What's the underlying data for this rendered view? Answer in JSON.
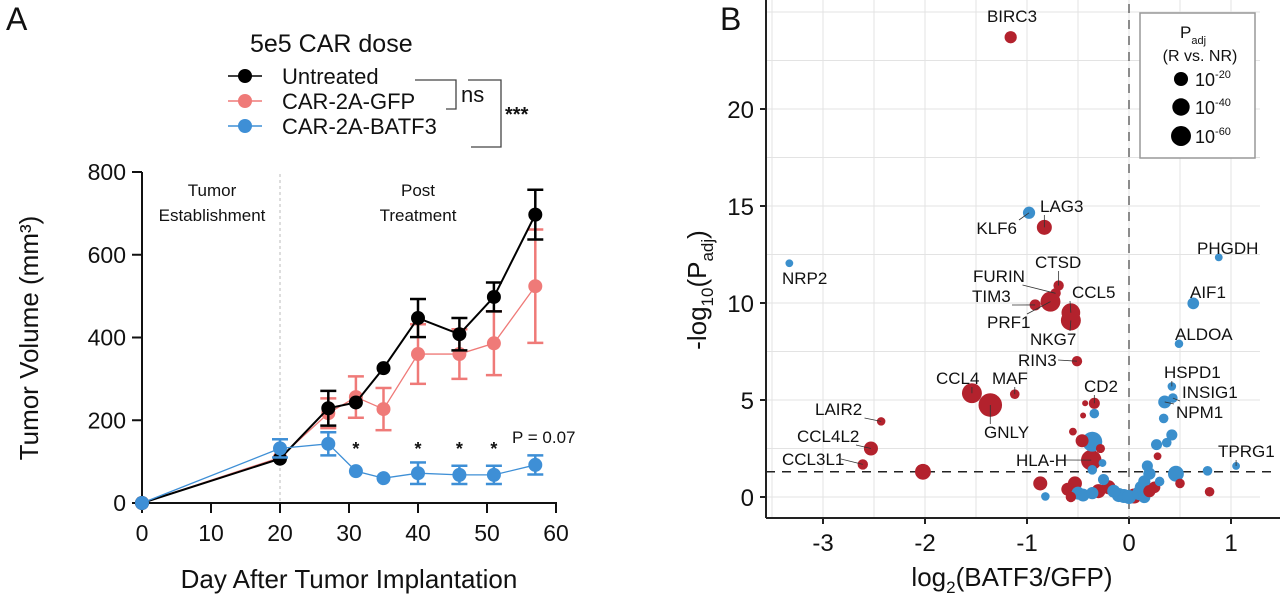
{
  "chart_data": [
    {
      "panel_label": "A",
      "type": "line",
      "title": "5e5 CAR dose",
      "xlabel": "Day After Tumor Implantation",
      "ylabel": "Tumor Volume  (mm³)",
      "xlim": [
        0,
        60
      ],
      "ylim": [
        0,
        800
      ],
      "xticks": [
        0,
        10,
        20,
        30,
        40,
        50,
        60
      ],
      "yticks": [
        0,
        200,
        400,
        600,
        800
      ],
      "grid": false,
      "legend_position": "top",
      "phase_divider_day": 20,
      "phase_labels": [
        [
          "Tumor",
          "Establishment"
        ],
        [
          "Post",
          "Treatment"
        ]
      ],
      "series": [
        {
          "name": "CAR-2A-GFP",
          "color": "#ef7a78",
          "x": [
            0,
            20,
            27,
            31,
            35,
            40,
            46,
            51,
            57
          ],
          "y": [
            0,
            110,
            217,
            256,
            227,
            360,
            360,
            386,
            524
          ],
          "err": [
            0,
            0,
            36,
            50,
            51,
            72,
            60,
            77,
            137
          ]
        },
        {
          "name": "Untreated",
          "color": "#000000",
          "x": [
            0,
            20,
            27,
            31,
            35,
            40,
            46,
            51,
            57
          ],
          "y": [
            0,
            107,
            229,
            243,
            326,
            447,
            408,
            498,
            697
          ],
          "err": [
            0,
            0,
            42,
            0,
            0,
            46,
            39,
            35,
            60
          ]
        },
        {
          "name": "CAR-2A-BATF3",
          "color": "#3e8fd6",
          "x": [
            0,
            20,
            27,
            31,
            35,
            40,
            46,
            51,
            57
          ],
          "y": [
            0,
            132,
            143,
            77,
            60,
            72,
            68,
            68,
            92
          ],
          "err": [
            0,
            22,
            28,
            0,
            0,
            26,
            22,
            22,
            23
          ]
        }
      ],
      "legend_order": [
        "Untreated",
        "CAR-2A-GFP",
        "CAR-2A-BATF3"
      ],
      "significance_days": [
        31,
        40,
        46,
        51
      ],
      "significance_mark": "*",
      "p_annotation": "P = 0.07",
      "comparisons": [
        {
          "label": "ns",
          "between": [
            "Untreated",
            "CAR-2A-GFP"
          ]
        },
        {
          "label": "***",
          "between": [
            "Untreated",
            "CAR-2A-BATF3"
          ]
        }
      ]
    },
    {
      "panel_label": "B",
      "type": "scatter",
      "xlabel": "log2(BATF3/GFP)",
      "ylabel": "-log10(Padj)",
      "xlim": [
        -3.6,
        1.3
      ],
      "ylim": [
        -0.8,
        25
      ],
      "xticks": [
        -3,
        -2,
        -1,
        0,
        1
      ],
      "yticks": [
        0,
        5,
        10,
        15,
        20
      ],
      "grid": true,
      "threshold_y": 1.3,
      "threshold_x": 0,
      "colors": {
        "red": "#b3222d",
        "blue": "#3b8fcc"
      },
      "size_legend": {
        "title": "P",
        "title_sub": "adj",
        "subtitle": "(R vs. NR)",
        "entries": [
          {
            "base": "10",
            "exp": "-20",
            "p_exp": 20
          },
          {
            "base": "10",
            "exp": "-40",
            "p_exp": 40
          },
          {
            "base": "10",
            "exp": "-60",
            "p_exp": 60
          }
        ],
        "position": "top-right"
      },
      "points": [
        {
          "x": -1.16,
          "y": 23.7,
          "c": "red",
          "p": 12,
          "label": "BIRC3"
        },
        {
          "x": -0.98,
          "y": 14.65,
          "c": "blue",
          "p": 12,
          "label": "KLF6"
        },
        {
          "x": -0.83,
          "y": 13.9,
          "c": "red",
          "p": 25,
          "label": "LAG3"
        },
        {
          "x": -3.33,
          "y": 12.05,
          "c": "blue",
          "p": 1,
          "label": "NRP2"
        },
        {
          "x": 0.88,
          "y": 12.35,
          "c": "blue",
          "p": 1,
          "label": "PHGDH"
        },
        {
          "x": -0.69,
          "y": 10.9,
          "c": "red",
          "p": 6,
          "label": "CTSD"
        },
        {
          "x": -0.72,
          "y": 10.5,
          "c": "red",
          "p": 6,
          "label": "FURIN"
        },
        {
          "x": -0.92,
          "y": 9.9,
          "c": "red",
          "p": 8,
          "label": "TIM3"
        },
        {
          "x": -0.77,
          "y": 10.07,
          "c": "red",
          "p": 60,
          "label": "PRF1"
        },
        {
          "x": -0.57,
          "y": 9.5,
          "c": "red",
          "p": 50,
          "label": "CCL5"
        },
        {
          "x": -0.57,
          "y": 9.1,
          "c": "red",
          "p": 60,
          "label": "NKG7"
        },
        {
          "x": 0.63,
          "y": 9.98,
          "c": "blue",
          "p": 10,
          "label": "AIF1"
        },
        {
          "x": 0.49,
          "y": 7.9,
          "c": "blue",
          "p": 2,
          "label": "ALDOA"
        },
        {
          "x": -0.51,
          "y": 7.0,
          "c": "red",
          "p": 6,
          "label": "RIN3"
        },
        {
          "x": -1.54,
          "y": 5.35,
          "c": "red",
          "p": 60,
          "label": "CCL4"
        },
        {
          "x": -1.36,
          "y": 4.74,
          "c": "red",
          "p": 95,
          "label": "GNLY"
        },
        {
          "x": -1.12,
          "y": 5.3,
          "c": "red",
          "p": 4,
          "label": "MAF"
        },
        {
          "x": -0.34,
          "y": 4.83,
          "c": "red",
          "p": 8,
          "label": "CD2"
        },
        {
          "x": 0.42,
          "y": 5.7,
          "c": "blue",
          "p": 2,
          "label": "HSPD1"
        },
        {
          "x": 0.43,
          "y": 5.1,
          "c": "blue",
          "p": 4,
          "label": "INSIG1"
        },
        {
          "x": 0.35,
          "y": 4.9,
          "c": "blue",
          "p": 15,
          "label": "NPM1"
        },
        {
          "x": -2.43,
          "y": 3.9,
          "c": "red",
          "p": 2,
          "label": "LAIR2"
        },
        {
          "x": -2.53,
          "y": 2.5,
          "c": "red",
          "p": 20,
          "label": "CCL4L2"
        },
        {
          "x": -2.61,
          "y": 1.68,
          "c": "red",
          "p": 6,
          "label": "CCL3L1"
        },
        {
          "x": -0.37,
          "y": 1.9,
          "c": "red",
          "p": 65,
          "label": "HLA-H"
        },
        {
          "x": 1.05,
          "y": 1.6,
          "c": "blue",
          "p": 1,
          "label": "TPRG1"
        },
        {
          "x": -0.43,
          "y": 4.83,
          "c": "red",
          "p": 0
        },
        {
          "x": -0.34,
          "y": 4.3,
          "c": "blue",
          "p": 4
        },
        {
          "x": -0.45,
          "y": 4.2,
          "c": "red",
          "p": 0
        },
        {
          "x": -2.02,
          "y": 1.3,
          "c": "red",
          "p": 30
        },
        {
          "x": -0.55,
          "y": 3.37,
          "c": "red",
          "p": 1
        },
        {
          "x": -0.46,
          "y": 2.9,
          "c": "red",
          "p": 15
        },
        {
          "x": -0.36,
          "y": 2.85,
          "c": "blue",
          "p": 60
        },
        {
          "x": -0.28,
          "y": 2.5,
          "c": "red",
          "p": 3
        },
        {
          "x": -0.26,
          "y": 1.75,
          "c": "blue",
          "p": 1
        },
        {
          "x": -0.36,
          "y": 1.4,
          "c": "blue",
          "p": 4
        },
        {
          "x": -0.87,
          "y": 0.7,
          "c": "red",
          "p": 20
        },
        {
          "x": -0.82,
          "y": 0.03,
          "c": "blue",
          "p": 2
        },
        {
          "x": -0.53,
          "y": 0.7,
          "c": "red",
          "p": 20
        },
        {
          "x": -0.57,
          "y": 0.0,
          "c": "red",
          "p": 6
        },
        {
          "x": -0.6,
          "y": 0.4,
          "c": "red",
          "p": 15
        },
        {
          "x": -0.45,
          "y": 0.1,
          "c": "blue",
          "p": 15
        },
        {
          "x": -0.36,
          "y": 0.2,
          "c": "blue",
          "p": 12
        },
        {
          "x": -0.5,
          "y": 0.2,
          "c": "blue",
          "p": 15
        },
        {
          "x": -0.3,
          "y": 0.3,
          "c": "red",
          "p": 20
        },
        {
          "x": -0.25,
          "y": 0.9,
          "c": "blue",
          "p": 8
        },
        {
          "x": -0.2,
          "y": 0.5,
          "c": "red",
          "p": 20
        },
        {
          "x": -0.15,
          "y": 0.3,
          "c": "blue",
          "p": 15
        },
        {
          "x": -0.1,
          "y": 0.1,
          "c": "blue",
          "p": 20
        },
        {
          "x": -0.05,
          "y": 0.05,
          "c": "blue",
          "p": 20
        },
        {
          "x": 0.0,
          "y": 0.0,
          "c": "blue",
          "p": 20
        },
        {
          "x": 0.05,
          "y": 0.05,
          "c": "red",
          "p": 25
        },
        {
          "x": 0.1,
          "y": 0.2,
          "c": "blue",
          "p": 20
        },
        {
          "x": 0.12,
          "y": 0.5,
          "c": "blue",
          "p": 15
        },
        {
          "x": 0.15,
          "y": 0.8,
          "c": "blue",
          "p": 12
        },
        {
          "x": 0.15,
          "y": 0.0,
          "c": "blue",
          "p": 12
        },
        {
          "x": 0.2,
          "y": 0.3,
          "c": "red",
          "p": 12
        },
        {
          "x": 0.2,
          "y": 1.2,
          "c": "blue",
          "p": 12
        },
        {
          "x": 0.18,
          "y": 1.6,
          "c": "blue",
          "p": 8
        },
        {
          "x": 0.25,
          "y": 0.5,
          "c": "red",
          "p": 10
        },
        {
          "x": 0.3,
          "y": 0.8,
          "c": "blue",
          "p": 4
        },
        {
          "x": 0.27,
          "y": 2.7,
          "c": "blue",
          "p": 8
        },
        {
          "x": 0.28,
          "y": 2.1,
          "c": "red",
          "p": 1
        },
        {
          "x": 0.37,
          "y": 2.8,
          "c": "blue",
          "p": 4
        },
        {
          "x": 0.42,
          "y": 3.2,
          "c": "blue",
          "p": 8
        },
        {
          "x": 0.34,
          "y": 4.05,
          "c": "blue",
          "p": 4
        },
        {
          "x": 0.46,
          "y": 1.2,
          "c": "blue",
          "p": 30
        },
        {
          "x": 0.5,
          "y": 0.7,
          "c": "red",
          "p": 4
        },
        {
          "x": 0.77,
          "y": 1.35,
          "c": "blue",
          "p": 4
        },
        {
          "x": 0.79,
          "y": 0.27,
          "c": "red",
          "p": 4
        }
      ]
    }
  ]
}
